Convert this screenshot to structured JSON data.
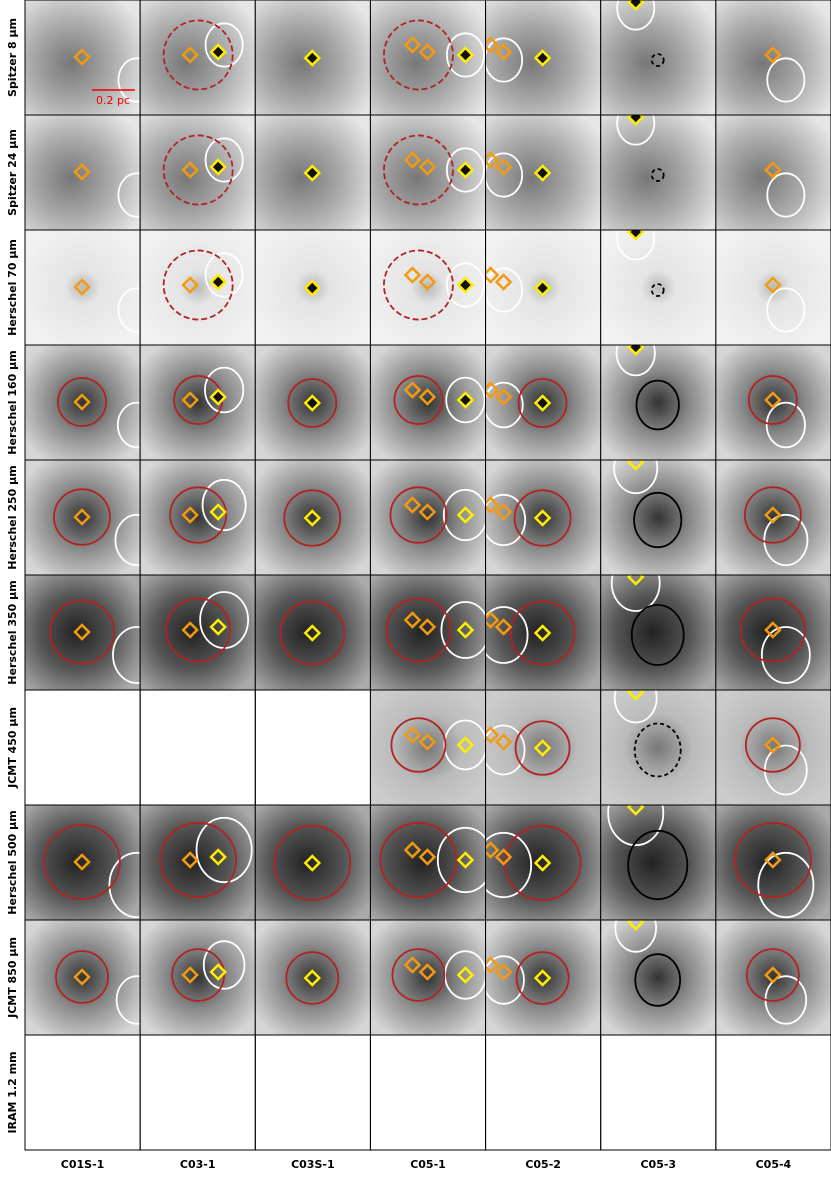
{
  "rows": [
    "Spitzer 8 µm",
    "Spitzer 24 µm",
    "Herschel 70 µm",
    "Herschel 160 µm",
    "Herschel 250 µm",
    "Herschel 350 µm",
    "JCMT 450 µm",
    "Herschel 500 µm",
    "JCMT 850 µm",
    "IRAM 1.2 mm"
  ],
  "columns": [
    "C01S-1",
    "C03-1",
    "C03S-1",
    "C05-1",
    "C05-2",
    "C05-3",
    "C05-4"
  ],
  "scale_bar": "0.2 pc"
}
